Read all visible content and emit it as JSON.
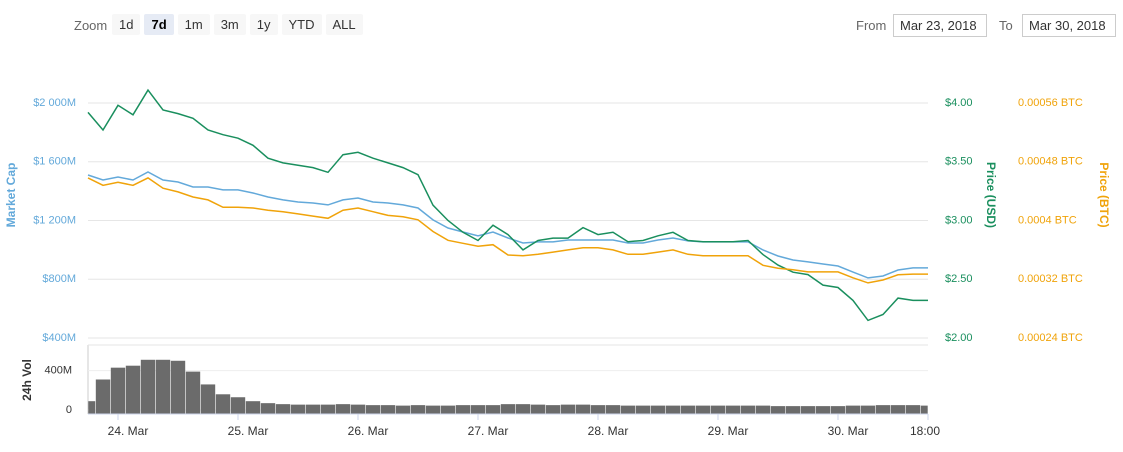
{
  "toolbar": {
    "zoom_label": "Zoom",
    "buttons": [
      "1d",
      "7d",
      "1m",
      "3m",
      "1y",
      "YTD",
      "ALL"
    ],
    "selected": "7d",
    "from_label": "From",
    "from_value": "Mar 23, 2018",
    "to_label": "To",
    "to_value": "Mar 30, 2018"
  },
  "chart_data": [
    {
      "type": "line",
      "x": [
        "2018-03-23T18:00",
        "2018-03-23T21:00",
        "2018-03-24T00:00",
        "2018-03-24T03:00",
        "2018-03-24T06:00",
        "2018-03-24T09:00",
        "2018-03-24T12:00",
        "2018-03-24T15:00",
        "2018-03-24T18:00",
        "2018-03-24T21:00",
        "2018-03-25T00:00",
        "2018-03-25T03:00",
        "2018-03-25T06:00",
        "2018-03-25T09:00",
        "2018-03-25T12:00",
        "2018-03-25T15:00",
        "2018-03-25T18:00",
        "2018-03-25T21:00",
        "2018-03-26T00:00",
        "2018-03-26T03:00",
        "2018-03-26T06:00",
        "2018-03-26T09:00",
        "2018-03-26T12:00",
        "2018-03-26T15:00",
        "2018-03-26T18:00",
        "2018-03-26T21:00",
        "2018-03-27T00:00",
        "2018-03-27T03:00",
        "2018-03-27T06:00",
        "2018-03-27T09:00",
        "2018-03-27T12:00",
        "2018-03-27T15:00",
        "2018-03-27T18:00",
        "2018-03-27T21:00",
        "2018-03-28T00:00",
        "2018-03-28T03:00",
        "2018-03-28T06:00",
        "2018-03-28T09:00",
        "2018-03-28T12:00",
        "2018-03-28T15:00",
        "2018-03-28T18:00",
        "2018-03-28T21:00",
        "2018-03-29T00:00",
        "2018-03-29T03:00",
        "2018-03-29T06:00",
        "2018-03-29T09:00",
        "2018-03-29T12:00",
        "2018-03-29T15:00",
        "2018-03-29T18:00",
        "2018-03-29T21:00",
        "2018-03-30T00:00",
        "2018-03-30T03:00",
        "2018-03-30T06:00",
        "2018-03-30T09:00",
        "2018-03-30T12:00",
        "2018-03-30T15:00",
        "2018-03-30T18:00"
      ],
      "xlim": [
        "2018-03-23T18:00",
        "2018-03-30T18:00"
      ],
      "ylabel": "Market Cap",
      "y2label": "Price (USD)",
      "y3label": "Price (BTC)",
      "ylim": [
        400,
        2400
      ],
      "yticks": [
        {
          "value": 400,
          "label": "$400M"
        },
        {
          "value": 800,
          "label": "$800M"
        },
        {
          "value": 1200,
          "label": "$1 200M"
        },
        {
          "value": 1600,
          "label": "$1 600M"
        },
        {
          "value": 2000,
          "label": "$2 000M"
        }
      ],
      "y2lim": [
        2.0,
        4.5
      ],
      "y2ticks": [
        {
          "value": 2,
          "label": "$2.00"
        },
        {
          "value": 2.5,
          "label": "$2.50"
        },
        {
          "value": 3,
          "label": "$3.00"
        },
        {
          "value": 3.5,
          "label": "$3.50"
        },
        {
          "value": 4,
          "label": "$4.00"
        }
      ],
      "y3lim": [
        0.00024,
        0.00064
      ],
      "y3ticks": [
        {
          "value": 0.00024,
          "label": "0.00024 BTC"
        },
        {
          "value": 0.00032,
          "label": "0.00032 BTC"
        },
        {
          "value": 0.0004,
          "label": "0.0004 BTC"
        },
        {
          "value": 0.00048,
          "label": "0.00048 BTC"
        },
        {
          "value": 0.00056,
          "label": "0.00056 BTC"
        }
      ],
      "grid": true,
      "series": [
        {
          "name": "Market Cap",
          "color": "#63a9da",
          "axis": "y",
          "values": [
            1510,
            1476,
            1496,
            1476,
            1530,
            1476,
            1462,
            1428,
            1428,
            1408,
            1408,
            1387,
            1360,
            1340,
            1326,
            1319,
            1306,
            1340,
            1353,
            1326,
            1319,
            1306,
            1285,
            1204,
            1149,
            1122,
            1095,
            1122,
            1081,
            1047,
            1054,
            1054,
            1067,
            1067,
            1067,
            1067,
            1047,
            1047,
            1067,
            1081,
            1061,
            1054,
            1054,
            1054,
            1054,
            999,
            958,
            931,
            918,
            904,
            890,
            849,
            809,
            822,
            863,
            877,
            877
          ]
        },
        {
          "name": "Price (USD)",
          "color": "#1a8f5e",
          "axis": "y2",
          "values": [
            3.92,
            3.77,
            3.98,
            3.9,
            4.11,
            3.94,
            3.91,
            3.87,
            3.77,
            3.73,
            3.7,
            3.64,
            3.53,
            3.49,
            3.47,
            3.45,
            3.41,
            3.56,
            3.58,
            3.53,
            3.49,
            3.45,
            3.39,
            3.13,
            3.0,
            2.9,
            2.83,
            2.96,
            2.88,
            2.75,
            2.83,
            2.85,
            2.85,
            2.94,
            2.88,
            2.9,
            2.82,
            2.83,
            2.87,
            2.9,
            2.83,
            2.82,
            2.82,
            2.82,
            2.83,
            2.71,
            2.62,
            2.56,
            2.54,
            2.45,
            2.43,
            2.32,
            2.15,
            2.2,
            2.34,
            2.32,
            2.32
          ]
        },
        {
          "name": "Price (BTC)",
          "color": "#f0a30a",
          "axis": "y3",
          "values": [
            0.000458,
            0.000448,
            0.000452,
            0.000448,
            0.000458,
            0.000444,
            0.000439,
            0.000432,
            0.000428,
            0.000418,
            0.000418,
            0.000417,
            0.000414,
            0.000412,
            0.000409,
            0.000406,
            0.000403,
            0.000414,
            0.000417,
            0.000412,
            0.000407,
            0.000405,
            0.000401,
            0.000385,
            0.000373,
            0.000369,
            0.000365,
            0.000367,
            0.000353,
            0.000352,
            0.000354,
            0.000357,
            0.00036,
            0.000363,
            0.000363,
            0.00036,
            0.000354,
            0.000354,
            0.000357,
            0.00036,
            0.000354,
            0.000352,
            0.000352,
            0.000352,
            0.000352,
            0.000339,
            0.000335,
            0.000333,
            0.00033,
            0.00033,
            0.00033,
            0.000322,
            0.000315,
            0.000319,
            0.000326,
            0.000327,
            0.000327
          ]
        }
      ]
    },
    {
      "type": "bar",
      "ylabel": "24h Vol",
      "x": [
        "2018-03-23T18:00",
        "2018-03-23T21:00",
        "2018-03-24T00:00",
        "2018-03-24T03:00",
        "2018-03-24T06:00",
        "2018-03-24T09:00",
        "2018-03-24T12:00",
        "2018-03-24T15:00",
        "2018-03-24T18:00",
        "2018-03-24T21:00",
        "2018-03-25T00:00",
        "2018-03-25T03:00",
        "2018-03-25T06:00",
        "2018-03-25T09:00",
        "2018-03-25T12:00",
        "2018-03-25T15:00",
        "2018-03-25T18:00",
        "2018-03-25T21:00",
        "2018-03-26T00:00",
        "2018-03-26T03:00",
        "2018-03-26T06:00",
        "2018-03-26T09:00",
        "2018-03-26T12:00",
        "2018-03-26T15:00",
        "2018-03-26T18:00",
        "2018-03-26T21:00",
        "2018-03-27T00:00",
        "2018-03-27T03:00",
        "2018-03-27T06:00",
        "2018-03-27T09:00",
        "2018-03-27T12:00",
        "2018-03-27T15:00",
        "2018-03-27T18:00",
        "2018-03-27T21:00",
        "2018-03-28T00:00",
        "2018-03-28T03:00",
        "2018-03-28T06:00",
        "2018-03-28T09:00",
        "2018-03-28T12:00",
        "2018-03-28T15:00",
        "2018-03-28T18:00",
        "2018-03-28T21:00",
        "2018-03-29T00:00",
        "2018-03-29T03:00",
        "2018-03-29T06:00",
        "2018-03-29T09:00",
        "2018-03-29T12:00",
        "2018-03-29T15:00",
        "2018-03-29T18:00",
        "2018-03-29T21:00",
        "2018-03-30T00:00",
        "2018-03-30T03:00",
        "2018-03-30T06:00",
        "2018-03-30T09:00",
        "2018-03-30T12:00",
        "2018-03-30T15:00",
        "2018-03-30T18:00"
      ],
      "xlim": [
        "2018-03-23T18:00",
        "2018-03-30T18:00"
      ],
      "xticks": [
        {
          "value": "2018-03-24T00:00",
          "label": "24. Mar"
        },
        {
          "value": "2018-03-25T00:00",
          "label": "25. Mar"
        },
        {
          "value": "2018-03-26T00:00",
          "label": "26. Mar"
        },
        {
          "value": "2018-03-27T00:00",
          "label": "27. Mar"
        },
        {
          "value": "2018-03-28T00:00",
          "label": "28. Mar"
        },
        {
          "value": "2018-03-29T00:00",
          "label": "29. Mar"
        },
        {
          "value": "2018-03-30T00:00",
          "label": "30. Mar"
        },
        {
          "value": "2018-03-30T18:00",
          "label": "18:00"
        }
      ],
      "ylim": [
        0,
        700
      ],
      "yticks": [
        0,
        {
          "value": 400,
          "label": "400M"
        }
      ],
      "color": "#6b6b6b",
      "values": [
        130,
        350,
        470,
        490,
        550,
        550,
        540,
        430,
        300,
        200,
        170,
        130,
        110,
        100,
        95,
        95,
        95,
        100,
        95,
        90,
        90,
        85,
        90,
        85,
        85,
        90,
        90,
        90,
        100,
        100,
        95,
        90,
        95,
        95,
        90,
        90,
        85,
        85,
        85,
        85,
        85,
        85,
        85,
        85,
        85,
        85,
        80,
        80,
        80,
        80,
        80,
        85,
        85,
        90,
        90,
        90,
        85
      ]
    }
  ]
}
